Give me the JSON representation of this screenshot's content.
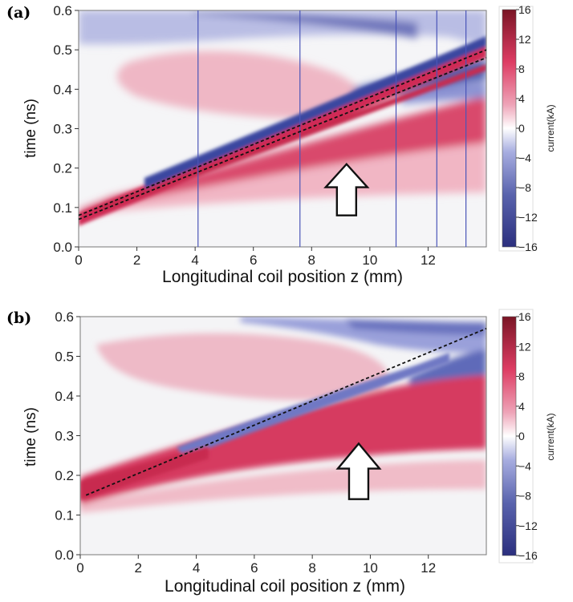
{
  "figure": {
    "width": 714,
    "height": 751
  },
  "chart_data": [
    {
      "type": "heatmap",
      "panel_label": "(a)",
      "xlabel": "Longitudinal coil position z (mm)",
      "ylabel": "time (ns)",
      "xlim": [
        0,
        14
      ],
      "ylim": [
        0,
        0.6
      ],
      "x_ticks": [
        0,
        2,
        4,
        6,
        8,
        10,
        12
      ],
      "y_ticks": [
        0.0,
        0.1,
        0.2,
        0.3,
        0.4,
        0.5,
        0.6
      ],
      "y_tick_labels": [
        "0.0",
        "0.1",
        "0.2",
        "0.3",
        "0.4",
        "0.5",
        "0.6"
      ],
      "colorbar": {
        "label": "current(kA)",
        "range": [
          -16,
          16
        ],
        "ticks": [
          16,
          12,
          8,
          4,
          0,
          -4,
          -8,
          -12,
          -16
        ],
        "colors": [
          "#2b2f7e",
          "#5963ad",
          "#a7ade0",
          "#ffffff",
          "#eea3b7",
          "#dd3c63",
          "#7a1525"
        ]
      },
      "vertical_lines_z": [
        4.1,
        7.6,
        10.9,
        12.3,
        13.3
      ],
      "dashed_lines": [
        {
          "z": [
            0,
            14
          ],
          "t": [
            0.08,
            0.5
          ]
        },
        {
          "z": [
            0,
            14
          ],
          "t": [
            0.07,
            0.48
          ]
        }
      ],
      "arrow": {
        "z": 9.2,
        "t_tip": 0.21,
        "t_base": 0.08,
        "direction": "up"
      },
      "grid": false
    },
    {
      "type": "heatmap",
      "panel_label": "(b)",
      "xlabel": "Longitudinal coil position z (mm)",
      "ylabel": "time (ns)",
      "xlim": [
        0,
        14
      ],
      "ylim": [
        0,
        0.6
      ],
      "x_ticks": [
        0,
        2,
        4,
        6,
        8,
        10,
        12
      ],
      "y_ticks": [
        0.0,
        0.1,
        0.2,
        0.3,
        0.4,
        0.5,
        0.6
      ],
      "y_tick_labels": [
        "0.0",
        "0.1",
        "0.2",
        "0.3",
        "0.4",
        "0.5",
        "0.6"
      ],
      "colorbar": {
        "label": "current(kA)",
        "range": [
          -16,
          16
        ],
        "ticks": [
          16,
          12,
          8,
          4,
          0,
          -4,
          -8,
          -12,
          -16
        ],
        "colors": [
          "#2b2f7e",
          "#5963ad",
          "#a7ade0",
          "#ffffff",
          "#eea3b7",
          "#dd3c63",
          "#7a1525"
        ]
      },
      "vertical_lines_z": [],
      "dashed_lines": [
        {
          "z": [
            0.2,
            14
          ],
          "t": [
            0.15,
            0.57
          ]
        }
      ],
      "arrow": {
        "z": 9.6,
        "t_tip": 0.28,
        "t_base": 0.14,
        "direction": "up"
      },
      "grid": false
    }
  ]
}
